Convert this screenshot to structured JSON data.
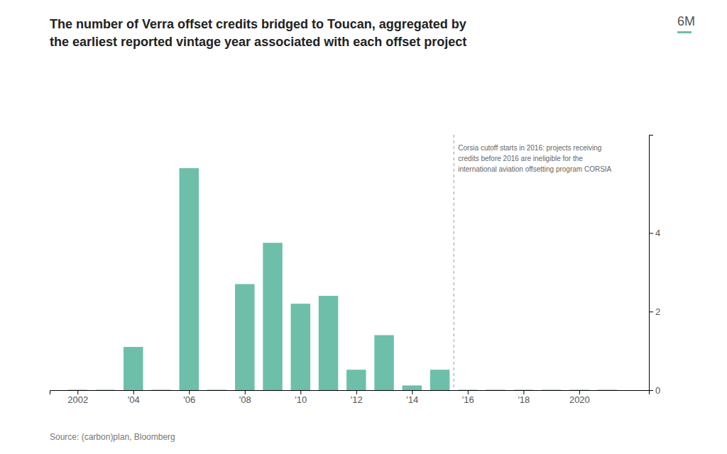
{
  "chart_data": {
    "type": "bar",
    "title": "The number of Verra offset credits bridged to Toucan, aggregated by\nthe earliest reported vintage year associated with each offset project",
    "source": "Source: (carbon)plan, Bloomberg",
    "x": [
      2002,
      2003,
      2004,
      2005,
      2006,
      2007,
      2008,
      2009,
      2010,
      2011,
      2012,
      2013,
      2014,
      2015,
      2016,
      2017,
      2018,
      2019,
      2020,
      2021
    ],
    "series": [
      {
        "name": "6M",
        "color": "#6dbfaa",
        "values": [
          0.01,
          0.01,
          1.1,
          0.01,
          5.65,
          0.01,
          2.7,
          3.75,
          2.2,
          2.4,
          0.52,
          1.4,
          0.12,
          0.52,
          0.01,
          0.01,
          0.01,
          0.01,
          0.01,
          0.01
        ]
      }
    ],
    "xlim": [
      2001.0,
      2022.5
    ],
    "xticks": [
      2002,
      {
        "value": 2004,
        "label": "'04"
      },
      {
        "value": 2006,
        "label": "'06"
      },
      {
        "value": 2008,
        "label": "'08"
      },
      {
        "value": 2010,
        "label": "'10"
      },
      {
        "value": 2012,
        "label": "'12"
      },
      {
        "value": 2014,
        "label": "'14"
      },
      {
        "value": 2016,
        "label": "'16"
      },
      {
        "value": 2018,
        "label": "'18"
      },
      2020
    ],
    "ylim": [
      0,
      6.5
    ],
    "yticks": [
      0,
      2,
      4
    ],
    "annotations": [
      {
        "text": "Corsia cutoff starts in 2016: projects receiving\ncredits before 2016 are ineligible for the\ninternational aviation offsetting program CORSIA",
        "x": 2015.5
      }
    ],
    "legend": "upper right",
    "grid": false
  }
}
